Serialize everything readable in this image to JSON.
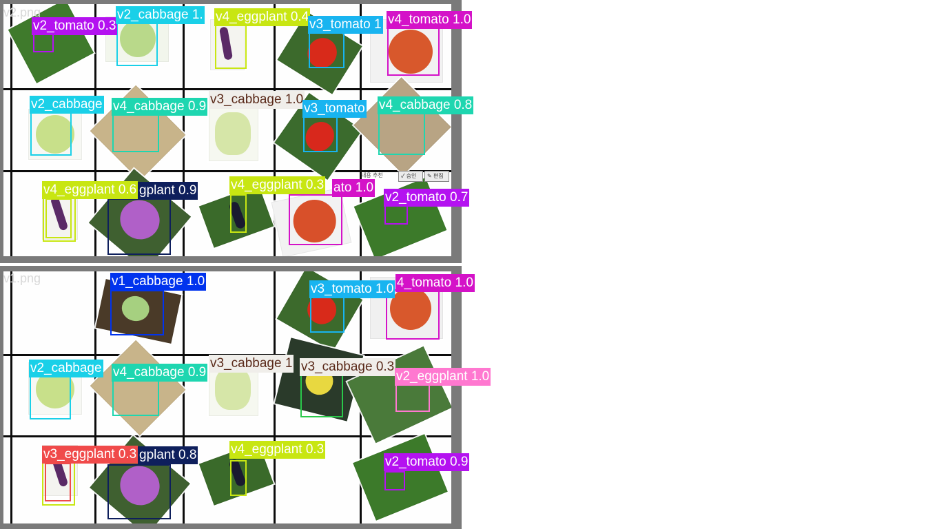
{
  "colors": {
    "background": "#ffffff",
    "frame": "#7a7a7a",
    "grid": "#0c0c0c",
    "filename": "#d8d8d8",
    "cabbage_v1": "#0033ee",
    "cabbage_v2": "#1ad0e8",
    "cabbage_v3": "#f0eeea",
    "cabbage_v4": "#1ed6b0",
    "eggplant_v2": "#ff78d0",
    "eggplant_v3": "#f04a4a",
    "eggplant_v4": "#c8e612",
    "eggplant_dark": "#0e1f5c",
    "tomato_v2": "#b412f0",
    "tomato_v3": "#18b4f0",
    "tomato_v4": "#d412c8"
  },
  "panels": [
    {
      "filename": "v2.png",
      "toolbar": {
        "text": "내용 추천",
        "button1": "✓ 승인",
        "button2": "✎ 편집"
      },
      "labels": [
        "v2_tomato 0.3",
        "v2_cabbage 1.",
        "v4_eggplant 0.4",
        "v3_tomato 1",
        "v4_tomato 1.0",
        "v2_cabbage",
        "v4_cabbage 0.9",
        "v3_cabbage 1.0",
        "v3_tomato",
        "v4_cabbage 0.8",
        "v4_eggplant 0.6",
        "gplant 0.9",
        "v4_eggplant 0.3",
        "ato 1.0",
        "v2_tomato 0.7"
      ]
    },
    {
      "filename": "v1.png",
      "labels": [
        "v1_cabbage 1.0",
        "v3_tomato 1.0",
        "4_tomato 1.0",
        "v2_cabbage",
        "v4_cabbage 0.9",
        "v3_cabbage 1",
        "v3_cabbage 0.3",
        "v2_eggplant 1.0",
        "v3_eggplant 0.3",
        "gplant 0.8",
        "v4_eggplant 0.3",
        "v2_tomato 0.9"
      ]
    }
  ]
}
